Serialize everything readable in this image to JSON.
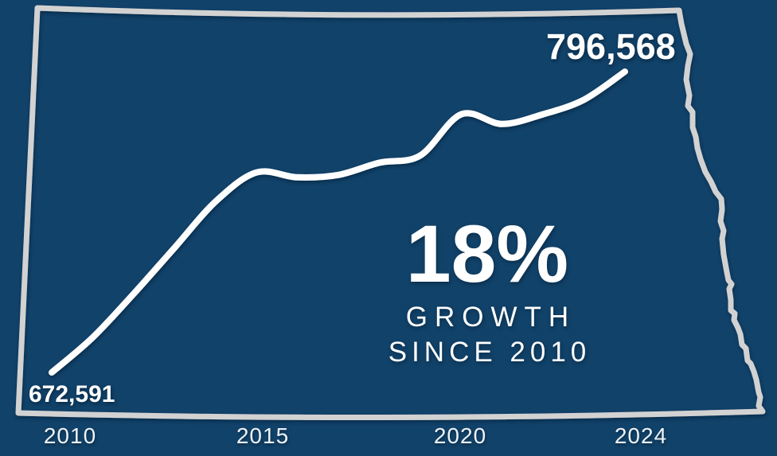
{
  "colors": {
    "background": "#114269",
    "state_outline": "#d2d2d2",
    "data_line": "#ffffff",
    "text": "#ffffff"
  },
  "chart_data": {
    "type": "line",
    "outline_shape": "north-dakota-state-border",
    "x": [
      2010,
      2011,
      2012,
      2013,
      2014,
      2015,
      2016,
      2017,
      2018,
      2019,
      2020,
      2021,
      2022,
      2023,
      2024
    ],
    "values": [
      672591,
      687000,
      705000,
      724000,
      743000,
      755000,
      753000,
      754000,
      759000,
      762000,
      779000,
      775000,
      779000,
      785000,
      796568
    ],
    "x_tick_labels": [
      "2010",
      "2015",
      "2020",
      "2024"
    ],
    "xlim": [
      2010,
      2024
    ],
    "ylim": [
      672591,
      796568
    ],
    "grid": "off",
    "legend": "none",
    "annotations": {
      "start_value": "672,591",
      "end_value": "796,568",
      "growth_pct": "18%",
      "growth_word": "GROWTH",
      "growth_since": "SINCE 2010"
    }
  }
}
